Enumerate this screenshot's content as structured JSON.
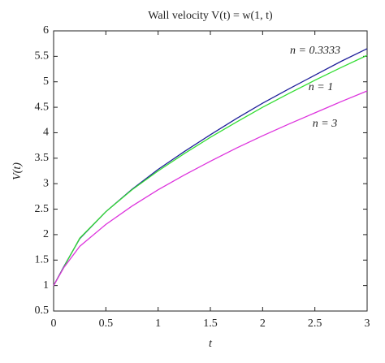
{
  "chart_data": {
    "type": "line",
    "title": "Wall velocity V(t) = w(1, t)",
    "x_label": "t",
    "y_label": "V(t)",
    "x": [
      0,
      0.1,
      0.25,
      0.5,
      0.75,
      1,
      1.25,
      1.5,
      1.75,
      2,
      2.25,
      2.5,
      2.75,
      3
    ],
    "series": [
      {
        "name": "n = 0.3333",
        "color": "#1f1f9a",
        "values": [
          1,
          1.38,
          1.92,
          2.45,
          2.89,
          3.28,
          3.63,
          3.96,
          4.28,
          4.58,
          4.86,
          5.13,
          5.4,
          5.65
        ]
      },
      {
        "name": "n = 1",
        "color": "#33dd33",
        "values": [
          1,
          1.37,
          1.93,
          2.45,
          2.88,
          3.25,
          3.59,
          3.91,
          4.21,
          4.5,
          4.77,
          5.03,
          5.28,
          5.52
        ]
      },
      {
        "name": "n = 3",
        "color": "#dd33dd",
        "values": [
          1,
          1.36,
          1.77,
          2.2,
          2.56,
          2.88,
          3.17,
          3.44,
          3.7,
          3.94,
          4.17,
          4.39,
          4.61,
          4.82
        ]
      }
    ],
    "xlim": [
      0,
      3
    ],
    "ylim": [
      0.5,
      6
    ],
    "xticks": [
      0,
      0.5,
      1,
      1.5,
      2,
      2.5,
      3
    ],
    "yticks": [
      0.5,
      1,
      1.5,
      2,
      2.5,
      3,
      3.5,
      4,
      4.5,
      5,
      5.5,
      6
    ],
    "grid": false
  }
}
